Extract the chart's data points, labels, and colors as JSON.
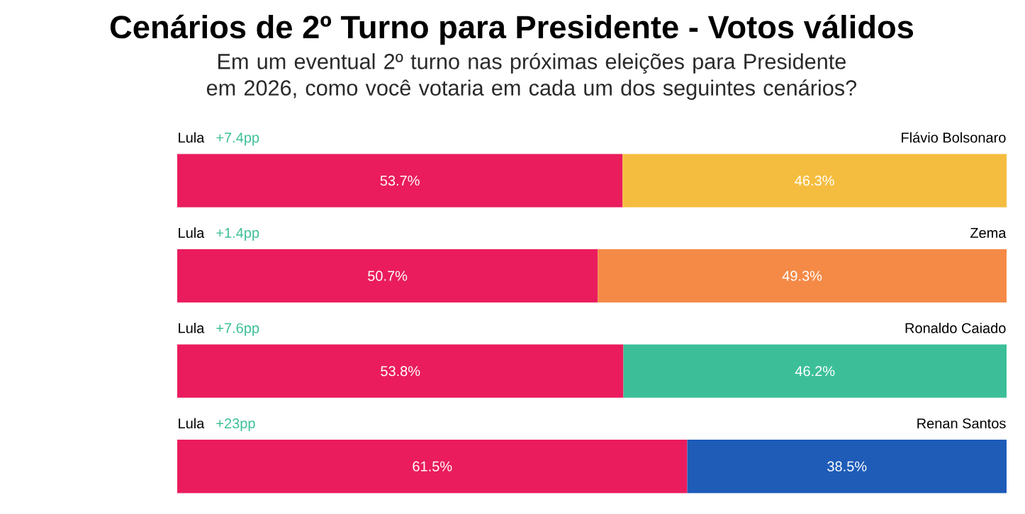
{
  "chart_data": {
    "type": "bar",
    "orientation": "horizontal",
    "stacked": true,
    "title": "Cenários de 2º Turno para Presidente - Votos válidos",
    "subtitle": "Em um eventual 2º turno nas próximas eleições para Presidente em 2026, como você votaria em cada um dos seguintes cenários?",
    "categories": [
      "Flávio Bolsonaro",
      "Zema",
      "Ronaldo Caiado",
      "Renan Santos"
    ],
    "series": [
      {
        "name": "Lula",
        "color": "#ea1c5d",
        "values": [
          53.7,
          50.7,
          53.8,
          61.5
        ],
        "value_labels": [
          "53.7%",
          "50.7%",
          "53.8%",
          "61.5%"
        ]
      },
      {
        "colors": [
          "#f5bd3f",
          "#f58a47",
          "#3cbf98",
          "#1e5cb8"
        ],
        "values": [
          46.3,
          49.3,
          46.2,
          38.5
        ],
        "value_labels": [
          "46.3%",
          "49.3%",
          "46.2%",
          "38.5%"
        ]
      }
    ],
    "annotations": [
      "+7.4pp",
      "+1.4pp",
      "+7.6pp",
      "+23pp"
    ],
    "tick_labels": false
  }
}
